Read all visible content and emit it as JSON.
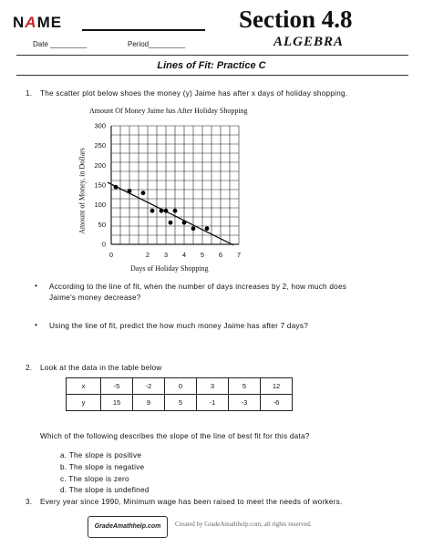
{
  "header": {
    "name_n": "N",
    "name_a": "A",
    "name_me": "ME",
    "date_label": "Date _________",
    "period_label": "Period_________",
    "section_title": "Section 4.8",
    "section_subtitle": "ALGEBRA"
  },
  "worksheet_title": "Lines of Fit: Practice C",
  "q1": {
    "number": "1.",
    "text": "The scatter plot below shoes the money (y) Jaime has after x days of holiday shopping.",
    "bullet1_line1": "According to the line of fit, when the number of days increases by 2, how much does",
    "bullet1_line2": "Jaime's money decrease?",
    "bullet2": "Using the line of fit, predict the how much money Jaime has after 7 days?"
  },
  "chart_data": {
    "type": "scatter",
    "title": "Amount Of Money Jaime has After Holiday Shopping",
    "xlabel": "Days of Holiday Shopping",
    "ylabel": "Amount of Money, in Dollars",
    "xlim": [
      0,
      7
    ],
    "ylim": [
      0,
      300
    ],
    "x_ticks": [
      "0",
      "2",
      "3",
      "4",
      "5",
      "6",
      "7"
    ],
    "y_ticks": [
      "0",
      "50",
      "100",
      "150",
      "200",
      "250",
      "300"
    ],
    "grid": true,
    "points": [
      {
        "x": 0.25,
        "y": 145
      },
      {
        "x": 1.0,
        "y": 135
      },
      {
        "x": 1.75,
        "y": 130
      },
      {
        "x": 2.25,
        "y": 85
      },
      {
        "x": 2.75,
        "y": 85
      },
      {
        "x": 3.0,
        "y": 85
      },
      {
        "x": 3.5,
        "y": 85
      },
      {
        "x": 3.25,
        "y": 55
      },
      {
        "x": 4.0,
        "y": 55
      },
      {
        "x": 4.5,
        "y": 40
      },
      {
        "x": 5.25,
        "y": 40
      }
    ],
    "fit_line": [
      {
        "x": 0,
        "y": 150
      },
      {
        "x": 6.5,
        "y": 5
      }
    ]
  },
  "q2": {
    "number": "2.",
    "text": "Look at the data in the table below",
    "table": {
      "x_label": "x",
      "y_label": "y",
      "x_values": [
        "-5",
        "-2",
        "0",
        "3",
        "5",
        "12"
      ],
      "y_values": [
        "15",
        "9",
        "5",
        "-1",
        "-3",
        "-6"
      ]
    },
    "question": "Which of the following describes the slope of the line of best fit for this data?",
    "options": [
      "a.  The slope is positive",
      "b.  The slope is negative",
      "c.  The slope is zero",
      "d.  The slope is undefined"
    ]
  },
  "q3": {
    "number": "3.",
    "text": "Every year since 1990, Minimum wage has been raised to meet the needs of workers."
  },
  "footer": {
    "logo_text": "GradeAmathhelp.com",
    "credit": "Created by GradeAmathhelp.com, all rights reserved."
  }
}
